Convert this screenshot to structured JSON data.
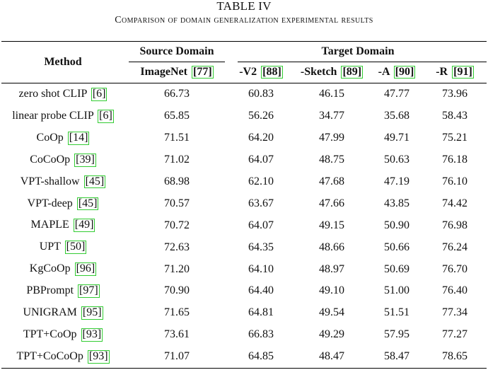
{
  "caption": {
    "label": "TABLE IV",
    "title": "Comparison of domain generalization experimental results"
  },
  "header": {
    "method": "Method",
    "source_domain": "Source Domain",
    "target_domain": "Target Domain",
    "columns": [
      {
        "name": "ImageNet",
        "cite": "[77]"
      },
      {
        "name": "-V2",
        "cite": "[88]"
      },
      {
        "name": "-Sketch",
        "cite": "[89]"
      },
      {
        "name": "-A",
        "cite": "[90]"
      },
      {
        "name": "-R",
        "cite": "[91]"
      }
    ]
  },
  "rows": [
    {
      "method": "zero shot CLIP",
      "cite": "[6]",
      "values": [
        "66.73",
        "60.83",
        "46.15",
        "47.77",
        "73.96"
      ]
    },
    {
      "method": "linear probe CLIP",
      "cite": "[6]",
      "values": [
        "65.85",
        "56.26",
        "34.77",
        "35.68",
        "58.43"
      ]
    },
    {
      "method": "CoOp",
      "cite": "[14]",
      "values": [
        "71.51",
        "64.20",
        "47.99",
        "49.71",
        "75.21"
      ]
    },
    {
      "method": "CoCoOp",
      "cite": "[39]",
      "values": [
        "71.02",
        "64.07",
        "48.75",
        "50.63",
        "76.18"
      ]
    },
    {
      "method": "VPT-shallow",
      "cite": "[45]",
      "values": [
        "68.98",
        "62.10",
        "47.68",
        "47.19",
        "76.10"
      ]
    },
    {
      "method": "VPT-deep",
      "cite": "[45]",
      "values": [
        "70.57",
        "63.67",
        "47.66",
        "43.85",
        "74.42"
      ]
    },
    {
      "method": "MAPLE",
      "cite": "[49]",
      "values": [
        "70.72",
        "64.07",
        "49.15",
        "50.90",
        "76.98"
      ]
    },
    {
      "method": "UPT",
      "cite": "[50]",
      "values": [
        "72.63",
        "64.35",
        "48.66",
        "50.66",
        "76.24"
      ]
    },
    {
      "method": "KgCoOp",
      "cite": "[96]",
      "values": [
        "71.20",
        "64.10",
        "48.97",
        "50.69",
        "76.70"
      ]
    },
    {
      "method": "PBPrompt",
      "cite": "[97]",
      "values": [
        "70.90",
        "64.40",
        "49.10",
        "51.00",
        "76.40"
      ]
    },
    {
      "method": "UNIGRAM",
      "cite": "[95]",
      "values": [
        "71.65",
        "64.81",
        "49.54",
        "51.51",
        "77.34"
      ]
    },
    {
      "method": "TPT+CoOp",
      "cite": "[93]",
      "values": [
        "73.61",
        "66.83",
        "49.29",
        "57.95",
        "77.27"
      ]
    },
    {
      "method": "TPT+CoCoOp",
      "cite": "[93]",
      "values": [
        "71.07",
        "64.85",
        "48.47",
        "58.47",
        "78.65"
      ]
    }
  ]
}
